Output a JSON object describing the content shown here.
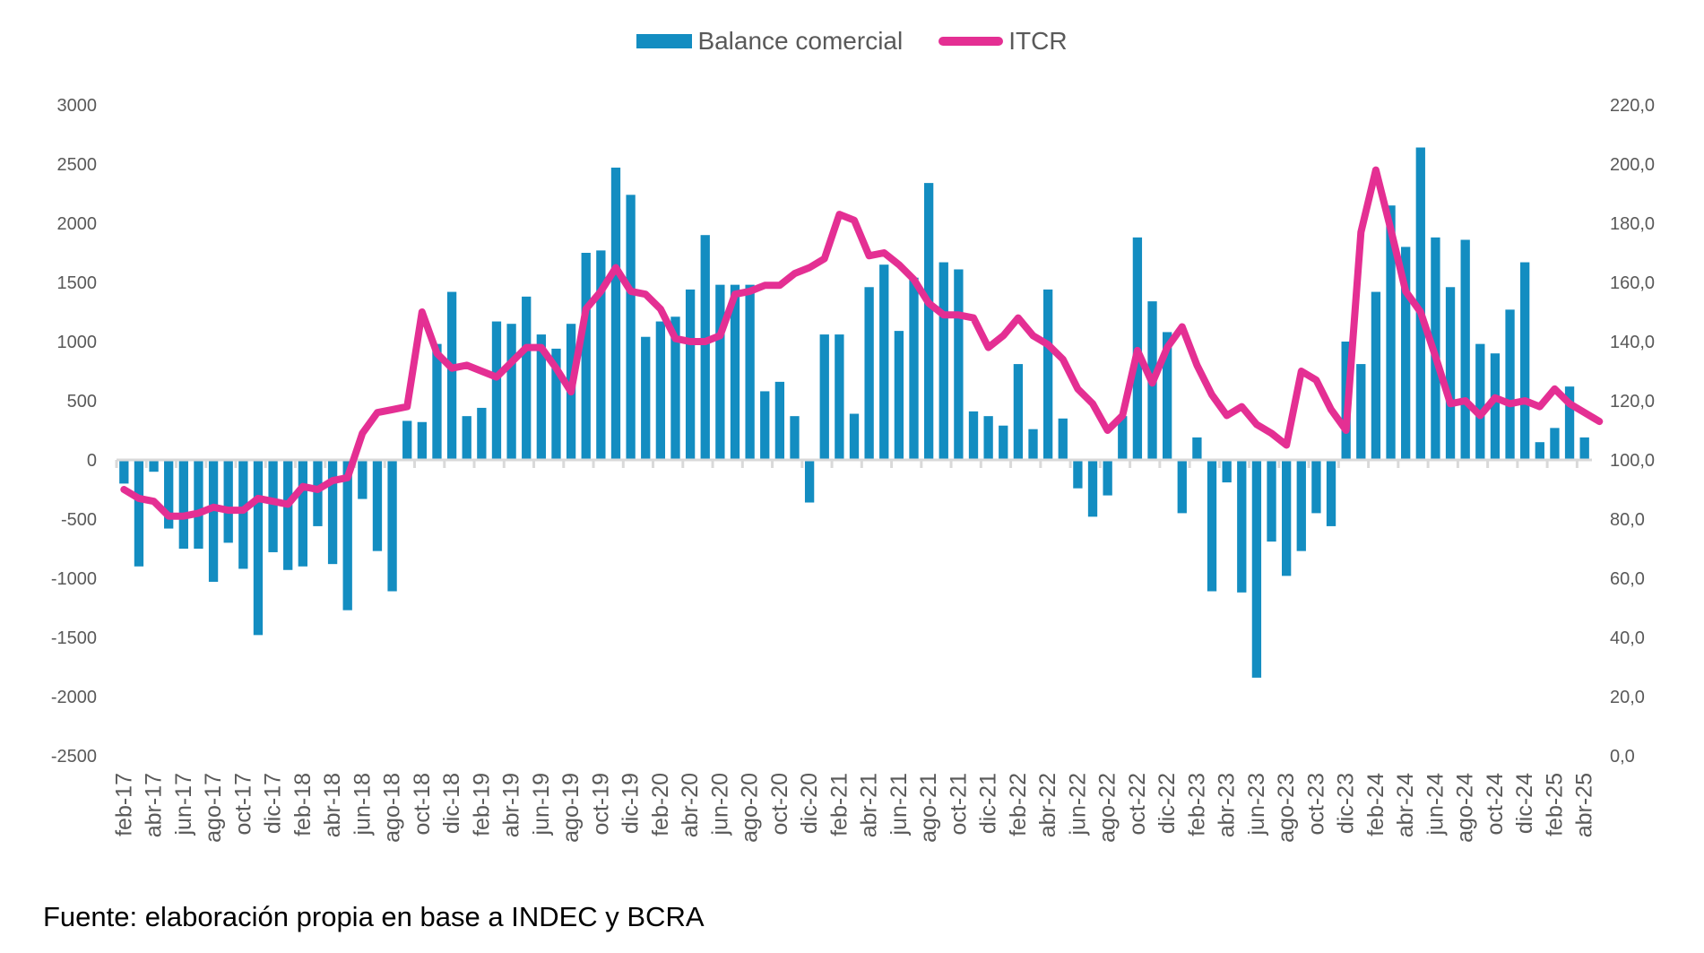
{
  "chart_data": {
    "type": "bar+line",
    "title": "",
    "legend_position": "top-center",
    "footer": "Fuente: elaboración propia en base a INDEC y BCRA",
    "colors": {
      "bar": "#138dc1",
      "line": "#e42f93",
      "axis": "#d9d9d9",
      "text": "#595959"
    },
    "y_left": {
      "ylim": [
        -2500,
        3000
      ],
      "ticks": [
        "3000",
        "2500",
        "2000",
        "1500",
        "1000",
        "500",
        "0",
        "-500",
        "-1000",
        "-1500",
        "-2000",
        "-2500"
      ],
      "tick_values": [
        3000,
        2500,
        2000,
        1500,
        1000,
        500,
        0,
        -500,
        -1000,
        -1500,
        -2000,
        -2500
      ]
    },
    "y_right": {
      "ylim": [
        0,
        220
      ],
      "ticks": [
        "220,0",
        "200,0",
        "180,0",
        "160,0",
        "140,0",
        "120,0",
        "100,0",
        "80,0",
        "60,0",
        "40,0",
        "20,0",
        "0,0"
      ],
      "tick_values": [
        220,
        200,
        180,
        160,
        140,
        120,
        100,
        80,
        60,
        40,
        20,
        0
      ]
    },
    "x_tick_labels": [
      "feb-17",
      "abr-17",
      "jun-17",
      "ago-17",
      "oct-17",
      "dic-17",
      "feb-18",
      "abr-18",
      "jun-18",
      "ago-18",
      "oct-18",
      "dic-18",
      "feb-19",
      "abr-19",
      "jun-19",
      "ago-19",
      "oct-19",
      "dic-19",
      "feb-20",
      "abr-20",
      "jun-20",
      "ago-20",
      "oct-20",
      "dic-20",
      "feb-21",
      "abr-21",
      "jun-21",
      "ago-21",
      "oct-21",
      "dic-21",
      "feb-22",
      "abr-22",
      "jun-22",
      "ago-22",
      "oct-22",
      "dic-22",
      "feb-23",
      "abr-23",
      "jun-23",
      "ago-23",
      "oct-23",
      "dic-23",
      "feb-24",
      "abr-24",
      "jun-24",
      "ago-24",
      "oct-24",
      "dic-24",
      "feb-25",
      "abr-25"
    ],
    "series": [
      {
        "name": "Balance comercial",
        "type": "bar",
        "axis": "left",
        "values": [
          -200,
          -900,
          -100,
          -580,
          -750,
          -750,
          -1030,
          -700,
          -920,
          -1480,
          -780,
          -930,
          -900,
          -560,
          -880,
          -1270,
          -330,
          -770,
          -1110,
          330,
          320,
          980,
          1420,
          370,
          440,
          1170,
          1150,
          1380,
          1060,
          940,
          1150,
          1750,
          1770,
          2470,
          2240,
          1040,
          1170,
          1210,
          1440,
          1900,
          1480,
          1480,
          1480,
          580,
          660,
          370,
          -360,
          1060,
          1060,
          390,
          1460,
          1650,
          1090,
          1540,
          2340,
          1670,
          1610,
          410,
          370,
          290,
          810,
          260,
          1440,
          350,
          -240,
          -480,
          -300,
          370,
          1880,
          1340,
          1080,
          -450,
          190,
          -1110,
          -190,
          -1120,
          -1840,
          -690,
          -980,
          -770,
          -450,
          -560,
          1000,
          810,
          1420,
          2150,
          1800,
          2640,
          1880,
          1460,
          1860,
          980,
          900,
          1270,
          1670,
          150,
          270,
          620,
          190
        ]
      },
      {
        "name": "ITCR",
        "type": "line",
        "axis": "right",
        "values": [
          90,
          87,
          86,
          81,
          81,
          82,
          84,
          83,
          83,
          87,
          86,
          85,
          91,
          90,
          93,
          94,
          109,
          116,
          117,
          118,
          150,
          136,
          131,
          132,
          130,
          128,
          133,
          138,
          138,
          131,
          123,
          151,
          157,
          165,
          157,
          156,
          151,
          141,
          140,
          140,
          142,
          156,
          157,
          159,
          159,
          163,
          165,
          168,
          183,
          181,
          169,
          170,
          166,
          161,
          153,
          149,
          149,
          148,
          138,
          142,
          148,
          142,
          139,
          134,
          124,
          119,
          110,
          115,
          137,
          126,
          138,
          145,
          132,
          122,
          115,
          118,
          112,
          109,
          105,
          130,
          127,
          117,
          110,
          177,
          198,
          178,
          157,
          150,
          135,
          119,
          120,
          115,
          121,
          119,
          120,
          118,
          124,
          119,
          116,
          113
        ]
      }
    ]
  }
}
